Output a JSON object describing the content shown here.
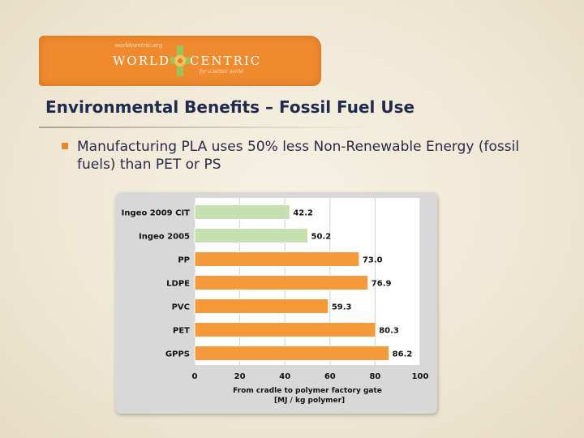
{
  "logo": {
    "tagline_top": "worldcentric.org",
    "word_1": "WORLD",
    "word_2": "CENTRIC",
    "tagline_bottom": "for a better world",
    "banner_color": "#ef8a2f"
  },
  "slide": {
    "title": "Environmental Benefits – Fossil Fuel Use",
    "bullet": "Manufacturing PLA uses 50% less Non-Renewable Energy (fossil fuels) than PET or PS"
  },
  "chart_data": {
    "type": "bar",
    "orientation": "horizontal",
    "categories": [
      "Ingeo 2009 CIT",
      "Ingeo 2005",
      "PP",
      "LDPE",
      "PVC",
      "PET",
      "GPPS"
    ],
    "values": [
      42.2,
      50.2,
      73.0,
      76.9,
      59.3,
      80.3,
      86.2
    ],
    "value_labels": [
      "42.2",
      "50.2",
      "73.0",
      "76.9",
      "59.3",
      "80.3",
      "86.2"
    ],
    "colors": [
      "#c7e0b0",
      "#c7e0b0",
      "#f59a3a",
      "#f59a3a",
      "#f59a3a",
      "#f59a3a",
      "#f59a3a"
    ],
    "xlim": [
      0,
      100
    ],
    "xticks": [
      0,
      20,
      40,
      60,
      80,
      100
    ],
    "xlabel_line1": "From cradle to polymer factory gate",
    "xlabel_line2": "[MJ / kg polymer]",
    "grid": true
  }
}
